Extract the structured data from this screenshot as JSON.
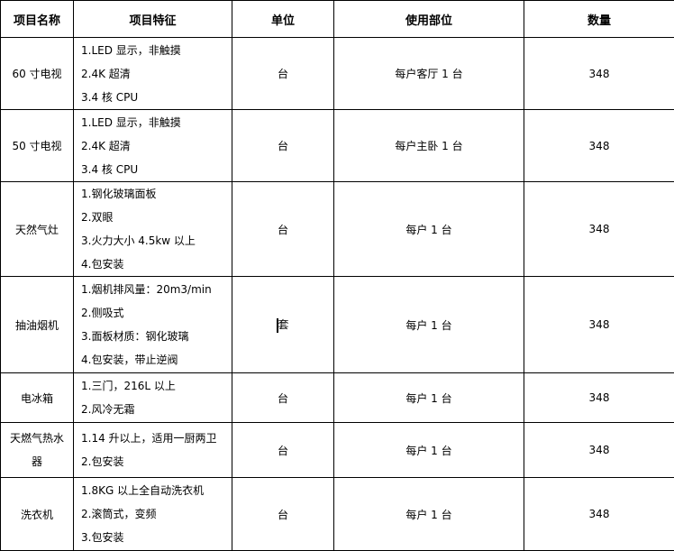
{
  "headers": [
    "项目名称",
    "项目特征",
    "单位",
    "使用部位",
    "数量"
  ],
  "rows": [
    {
      "name": "60 寸电视",
      "features": [
        "1.LED 显示，非触摸",
        "2.4K 超清",
        "3.4 核 CPU"
      ],
      "unit": "台",
      "location": "每户客厅 1 台",
      "qty": "348"
    },
    {
      "name": "50 寸电视",
      "features": [
        "1.LED 显示，非触摸",
        "2.4K 超清",
        "3.4 核 CPU"
      ],
      "unit": "台",
      "location": "每户主卧 1 台",
      "qty": "348"
    },
    {
      "name": "天然气灶",
      "features": [
        "1.钢化玻璃面板",
        "2.双眼",
        "3.火力大小 4.5kw 以上",
        "4.包安装"
      ],
      "unit": "台",
      "location": "每户 1 台",
      "qty": "348"
    },
    {
      "name": "抽油烟机",
      "features": [
        "1.烟机排风量：20m3/min",
        "2.侧吸式",
        "3.面板材质：钢化玻璃",
        "4.包安装，带止逆阀"
      ],
      "unit": "套",
      "location": "每户 1 台",
      "qty": "348"
    },
    {
      "name": "电冰箱",
      "features": [
        "1.三门，216L 以上",
        "2.风冷无霜"
      ],
      "unit": "台",
      "location": "每户 1 台",
      "qty": "348"
    },
    {
      "name": "天燃气热水器",
      "features": [
        "1.14 升以上，适用一厨两卫",
        "2.包安装"
      ],
      "unit": "台",
      "location": "每户 1 台",
      "qty": "348"
    },
    {
      "name": "洗衣机",
      "features": [
        "1.8KG 以上全自动洗衣机",
        "2.滚筒式，变频",
        "3.包安装"
      ],
      "unit": "台",
      "location": "每户 1 台",
      "qty": "348"
    }
  ]
}
